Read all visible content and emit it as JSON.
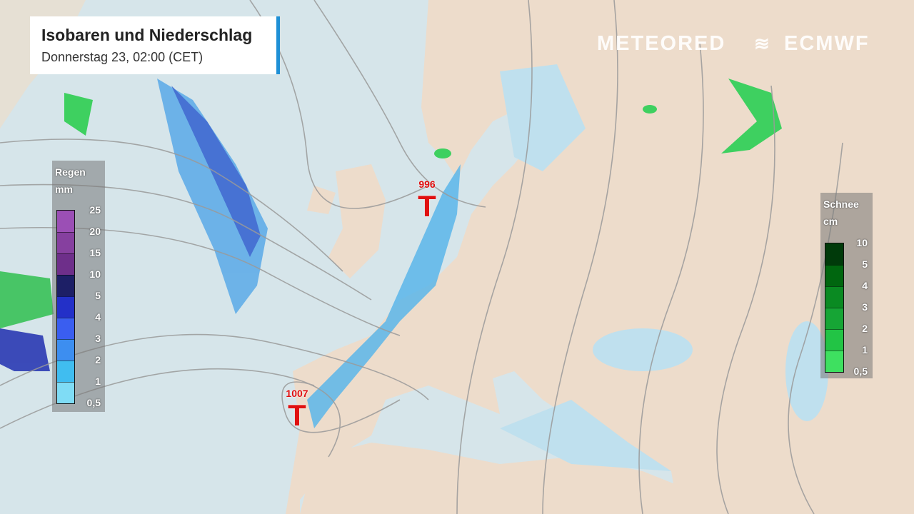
{
  "header": {
    "title": "Isobaren und Niederschlag",
    "subtitle": "Donnerstag 23, 02:00 (CET)"
  },
  "logos": {
    "meteored": "METEORED",
    "ecmwf": "ECMWF"
  },
  "rain_legend": {
    "title": "Regen",
    "unit": "mm",
    "ticks": [
      "25",
      "20",
      "15",
      "10",
      "5",
      "4",
      "3",
      "2",
      "1",
      "0,5"
    ],
    "colors": [
      "#9b4fb5",
      "#86409f",
      "#6e2f8a",
      "#1d1f66",
      "#2330c8",
      "#3a5ef0",
      "#3d8ef0",
      "#40bdf0",
      "#7fdcf5"
    ]
  },
  "snow_legend": {
    "title": "Schnee",
    "unit": "cm",
    "ticks": [
      "10",
      "5",
      "4",
      "3",
      "2",
      "1",
      "0,5"
    ],
    "colors": [
      "#003a0a",
      "#00660f",
      "#0a8a22",
      "#16a535",
      "#22c445",
      "#3ee060"
    ]
  },
  "pressure_lows": [
    {
      "value": "996",
      "symbol": "T"
    },
    {
      "value": "1007",
      "symbol": "T"
    }
  ],
  "colors": {
    "ocean": "#d8e6ea",
    "land": "#ecdccb",
    "low": "#e01010",
    "accent": "#1e90d6"
  }
}
